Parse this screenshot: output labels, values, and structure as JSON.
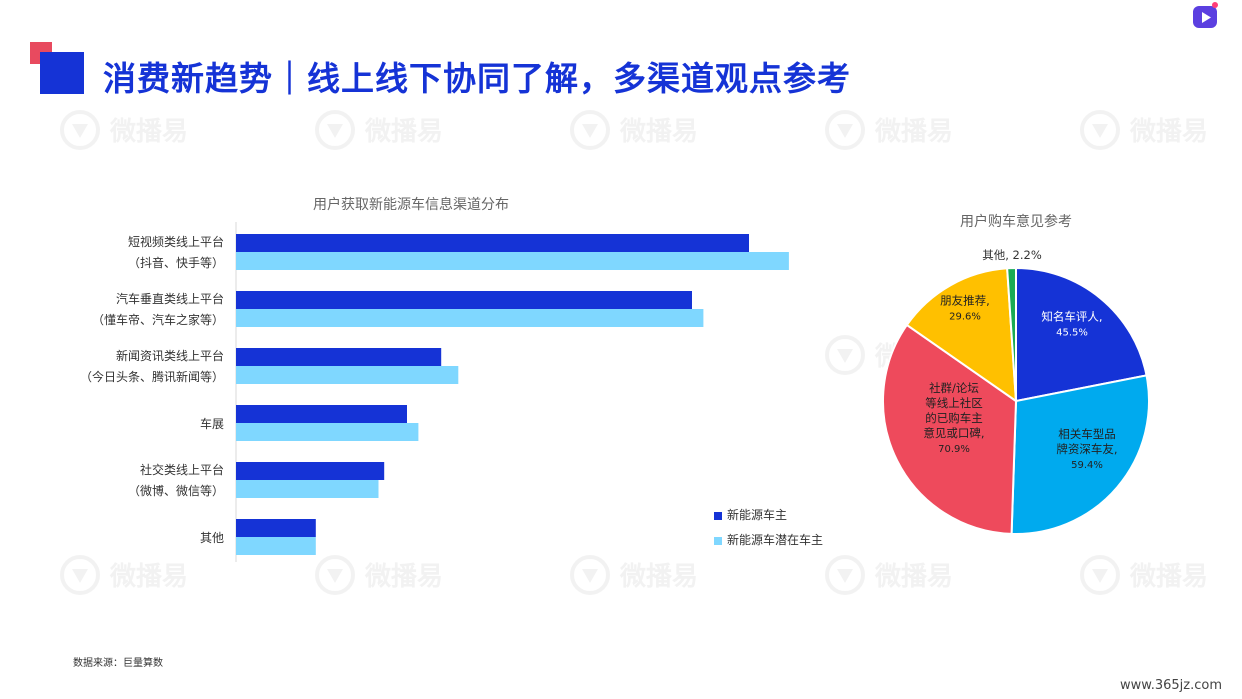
{
  "page": {
    "title": "消费新趋势｜线上线下协同了解，多渠道观点参考",
    "source": "数据来源：巨量算数",
    "watermark": "微播易",
    "site": "www.365jz.com"
  },
  "colors": {
    "title": "#1533d6",
    "series_owner": "#1533d6",
    "series_potential": "#7fd7ff",
    "pie": [
      "#1533d6",
      "#00aaee",
      "#ee4a5c",
      "#ffc000",
      "#1aab55"
    ]
  },
  "chart_data": [
    {
      "type": "bar",
      "orientation": "horizontal",
      "title": "用户获取新能源车信息渠道分布",
      "categories": [
        {
          "line1": "短视频类线上平台",
          "line2": "（抖音、快手等）"
        },
        {
          "line1": "汽车垂直类线上平台",
          "line2": "（懂车帝、汽车之家等）"
        },
        {
          "line1": "新闻资讯类线上平台",
          "line2": "（今日头条、腾讯新闻等）"
        },
        {
          "line1": "车展",
          "line2": ""
        },
        {
          "line1": "社交类线上平台",
          "line2": "（微博、微信等）"
        },
        {
          "line1": "其他",
          "line2": ""
        }
      ],
      "series": [
        {
          "name": "新能源车主",
          "values": [
            90,
            80,
            36,
            30,
            26,
            14
          ]
        },
        {
          "name": "新能源车潜在车主",
          "values": [
            97,
            82,
            39,
            32,
            25,
            14
          ]
        }
      ],
      "xlim": [
        0,
        100
      ],
      "legend": "right-bottom",
      "grid": false
    },
    {
      "type": "pie",
      "title": "用户购车意见参考",
      "slices": [
        {
          "label_lines": [
            "知名车评人,",
            "45.5%"
          ],
          "value": 45.5
        },
        {
          "label_lines": [
            "相关车型品",
            "牌资深车友,",
            "59.4%"
          ],
          "value": 59.4
        },
        {
          "label_lines": [
            "社群/论坛",
            "等线上社区",
            "的已购车主",
            "意见或口碑,",
            "70.9%"
          ],
          "value": 70.9
        },
        {
          "label_lines": [
            "朋友推荐,",
            "29.6%"
          ],
          "value": 29.6
        },
        {
          "label_lines": [
            "其他, 2.2%"
          ],
          "value": 2.2
        }
      ]
    }
  ]
}
